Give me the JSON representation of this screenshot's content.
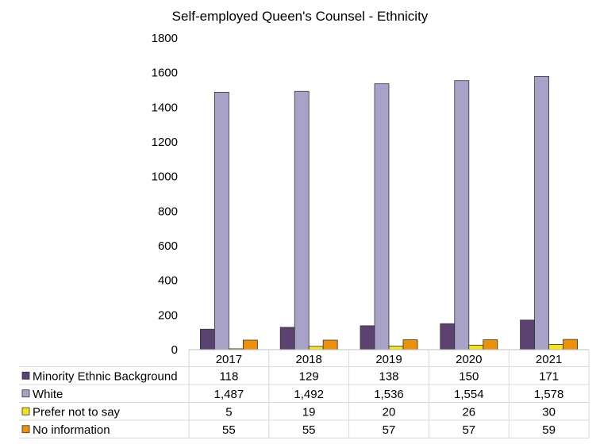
{
  "chart_data": {
    "type": "bar",
    "title": "Self-employed Queen's Counsel - Ethnicity",
    "xlabel": "",
    "ylabel": "",
    "ylim": [
      0,
      1800
    ],
    "yticks": [
      "0",
      "200",
      "400",
      "600",
      "800",
      "1000",
      "1200",
      "1400",
      "1600",
      "1800"
    ],
    "grid": false,
    "legend": "data-table-left",
    "categories": [
      "2017",
      "2018",
      "2019",
      "2020",
      "2021"
    ],
    "series": [
      {
        "name": "Minority Ethnic Background",
        "color": "#5b4270",
        "values": [
          118,
          129,
          138,
          150,
          171
        ],
        "labels": [
          "118",
          "129",
          "138",
          "150",
          "171"
        ]
      },
      {
        "name": "White",
        "color": "#a8a2c8",
        "values": [
          1487,
          1492,
          1536,
          1554,
          1578
        ],
        "labels": [
          "1,487",
          "1,492",
          "1,536",
          "1,554",
          "1,578"
        ]
      },
      {
        "name": "Prefer not to say",
        "color": "#f5e31a",
        "values": [
          5,
          19,
          20,
          26,
          30
        ],
        "labels": [
          "5",
          "19",
          "20",
          "26",
          "30"
        ]
      },
      {
        "name": "No information",
        "color": "#ee9008",
        "values": [
          55,
          55,
          57,
          57,
          59
        ],
        "labels": [
          "55",
          "55",
          "57",
          "57",
          "59"
        ]
      }
    ]
  }
}
